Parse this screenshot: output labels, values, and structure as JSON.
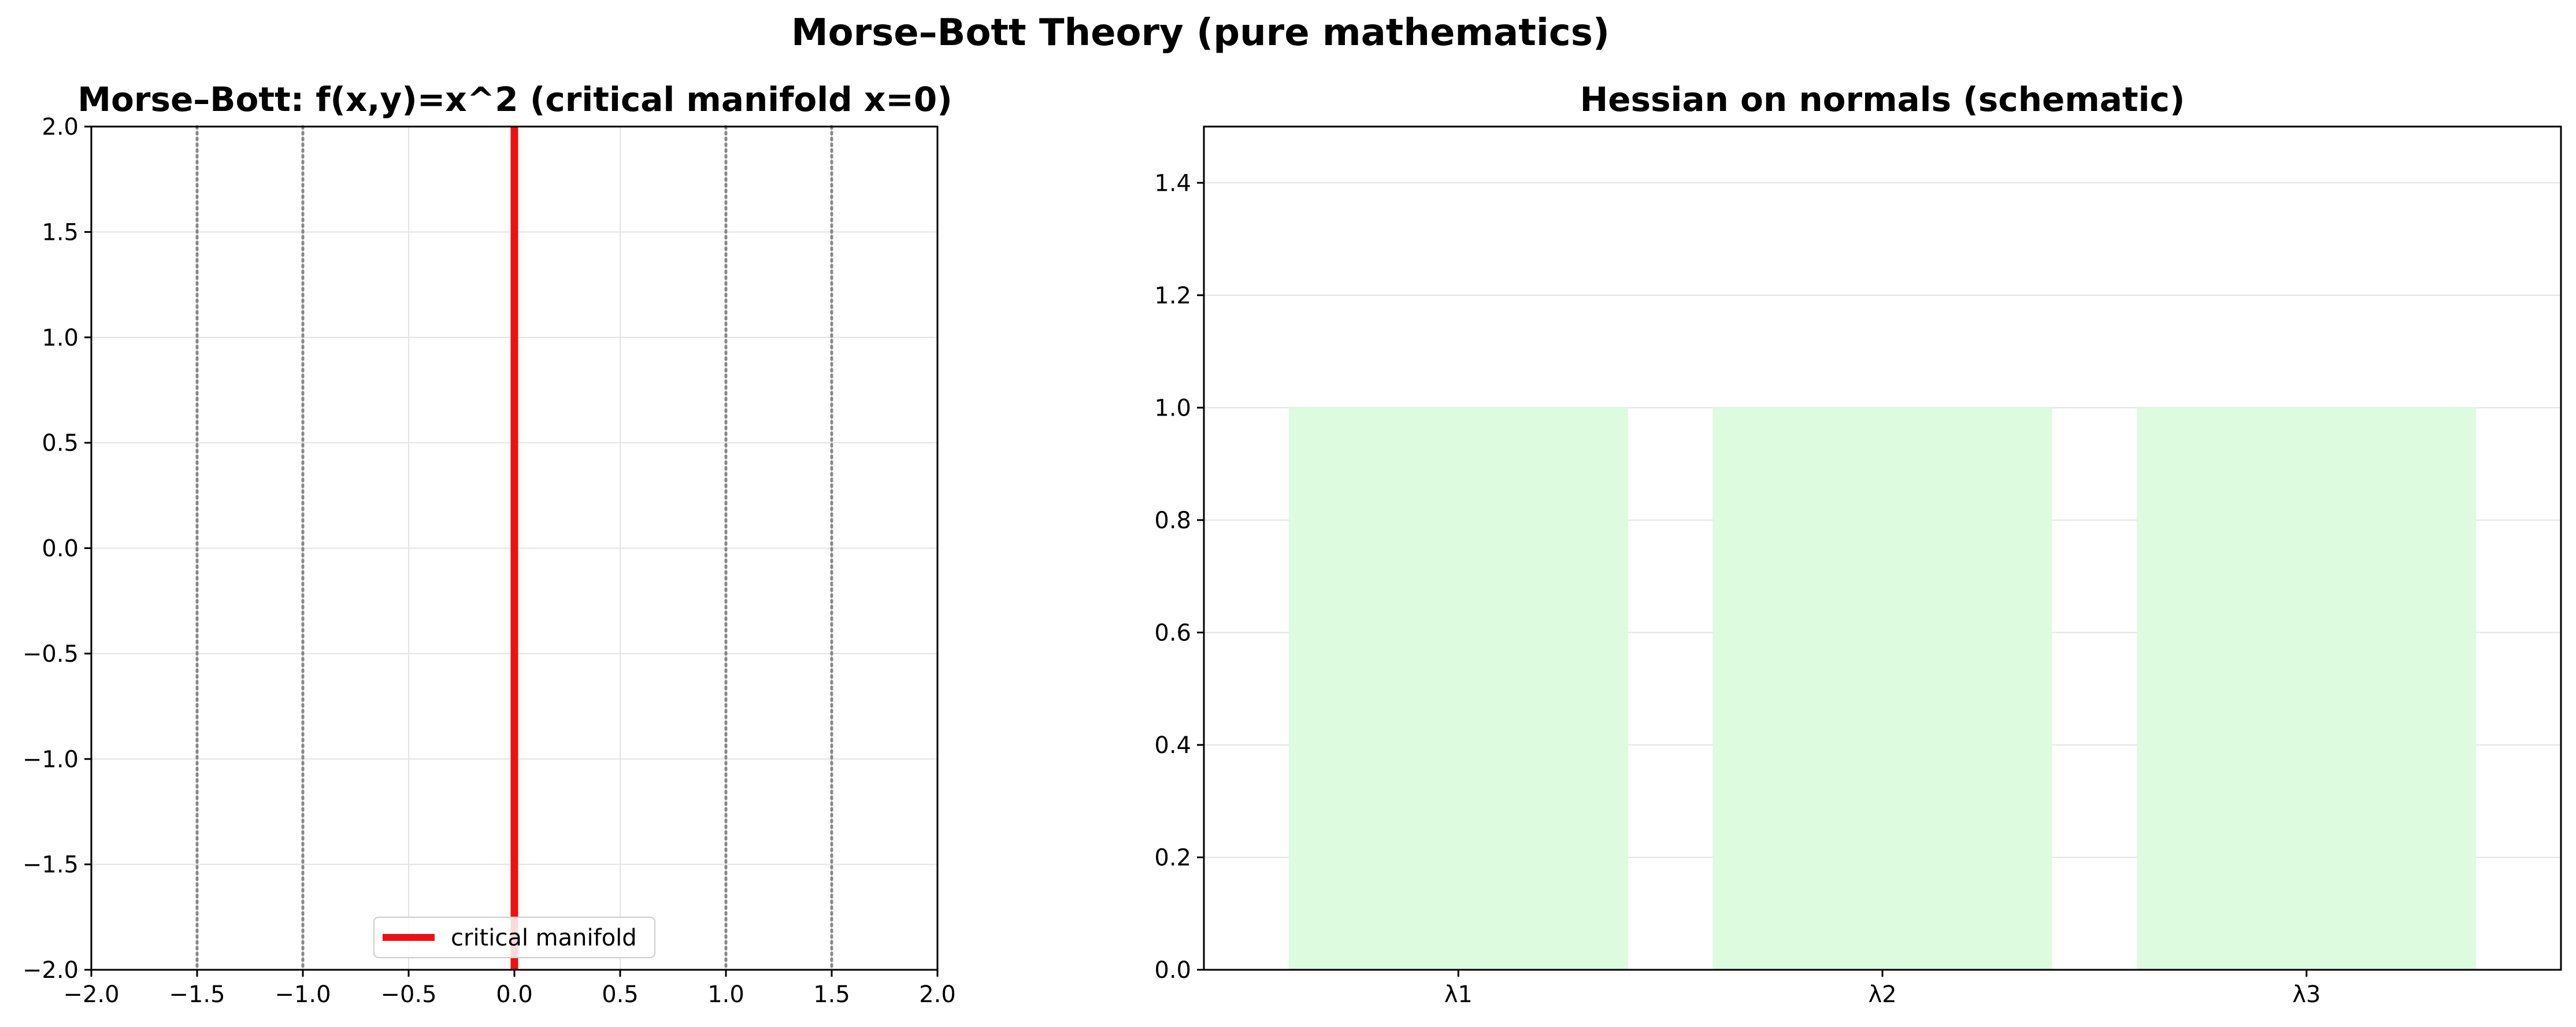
{
  "figure": {
    "suptitle": "Morse–Bott Theory (pure mathematics)"
  },
  "chart_data": [
    {
      "type": "line",
      "title": "Morse–Bott: f(x,y)=x^2 (critical manifold x=0)",
      "xlabel": "",
      "ylabel": "",
      "xlim": [
        -2.0,
        2.0
      ],
      "ylim": [
        -2.0,
        2.0
      ],
      "xticks": [
        "−2.0",
        "−1.5",
        "−1.0",
        "−0.5",
        "0.0",
        "0.5",
        "1.0",
        "1.5",
        "2.0"
      ],
      "xtick_values": [
        -2.0,
        -1.5,
        -1.0,
        -0.5,
        0.0,
        0.5,
        1.0,
        1.5,
        2.0
      ],
      "yticks": [
        "−2.0",
        "−1.5",
        "−1.0",
        "−0.5",
        "0.0",
        "0.5",
        "1.0",
        "1.5",
        "2.0"
      ],
      "ytick_values": [
        -2.0,
        -1.5,
        -1.0,
        -0.5,
        0.0,
        0.5,
        1.0,
        1.5,
        2.0
      ],
      "grid": true,
      "series": [
        {
          "name": "critical manifold",
          "x": [
            0.0,
            0.0
          ],
          "y": [
            -2.0,
            2.0
          ],
          "color": "#ee1111",
          "style": "solid"
        }
      ],
      "level_lines": {
        "x": [
          -1.5,
          -1.0,
          1.0,
          1.5
        ],
        "color": "#888888",
        "style": "dotted"
      },
      "legend": {
        "placement": "lower-center",
        "entries": [
          "critical manifold"
        ]
      }
    },
    {
      "type": "bar",
      "title": "Hessian on normals (schematic)",
      "xlabel": "",
      "ylabel": "",
      "categories": [
        "λ1",
        "λ2",
        "λ3"
      ],
      "values": [
        1.0,
        1.0,
        1.0
      ],
      "ylim": [
        0.0,
        1.5
      ],
      "yticks": [
        "0.0",
        "0.2",
        "0.4",
        "0.6",
        "0.8",
        "1.0",
        "1.2",
        "1.4"
      ],
      "ytick_values": [
        0.0,
        0.2,
        0.4,
        0.6,
        0.8,
        1.0,
        1.2,
        1.4
      ],
      "grid": true,
      "bar_color": "#ddfbdf"
    }
  ]
}
